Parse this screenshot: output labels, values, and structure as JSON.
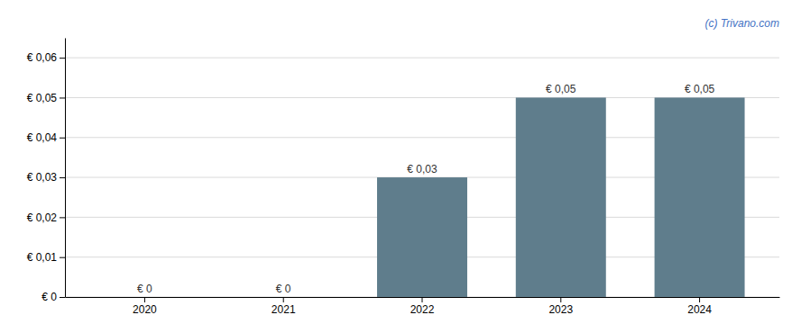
{
  "chart_data": {
    "type": "bar",
    "categories": [
      "2020",
      "2021",
      "2022",
      "2023",
      "2024"
    ],
    "values": [
      0.0,
      0.0,
      0.03,
      0.05,
      0.05
    ],
    "value_labels": [
      "€ 0",
      "€ 0",
      "€ 0,03",
      "€ 0,05",
      "€ 0,05"
    ],
    "data_labels": true,
    "color": "#5f7d8c",
    "ylim": [
      0,
      0.065
    ],
    "yticks": [
      {
        "value": 0.0,
        "label": "€ 0"
      },
      {
        "value": 0.01,
        "label": "€ 0,01"
      },
      {
        "value": 0.02,
        "label": "€ 0,02"
      },
      {
        "value": 0.03,
        "label": "€ 0,03"
      },
      {
        "value": 0.04,
        "label": "€ 0,04"
      },
      {
        "value": 0.05,
        "label": "€ 0,05"
      },
      {
        "value": 0.06,
        "label": "€ 0,06"
      }
    ],
    "grid": true,
    "annotations": [
      "(c) Trivano.com"
    ]
  }
}
